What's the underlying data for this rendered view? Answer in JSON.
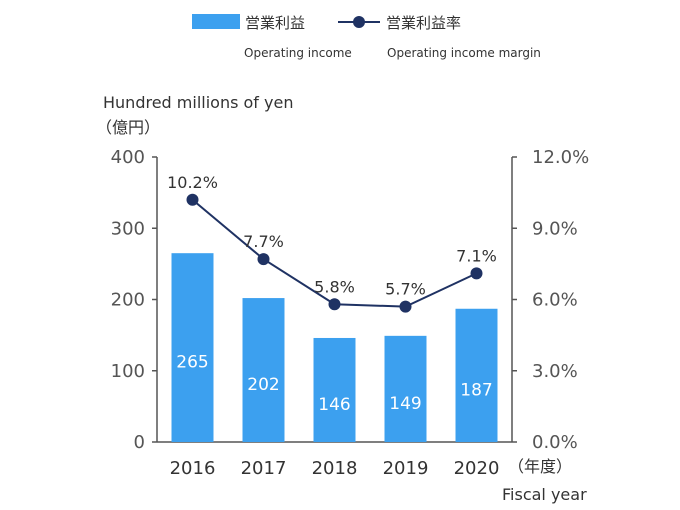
{
  "legend": {
    "bar_jp": "営業利益",
    "bar_en": "Operating income",
    "line_jp": "営業利益率",
    "line_en": "Operating income margin"
  },
  "axis": {
    "left_unit_en": "Hundred millions of yen",
    "left_unit_jp": "（億円）",
    "x_unit_jp": "（年度）",
    "x_unit_en": "Fiscal year"
  },
  "colors": {
    "bar": "#3ca0ef",
    "line": "#1f3263",
    "axis": "#555555"
  },
  "chart_data": {
    "type": "bar",
    "categories": [
      "2016",
      "2017",
      "2018",
      "2019",
      "2020"
    ],
    "series": [
      {
        "name": "営業利益",
        "type": "bar",
        "axis": "left",
        "values": [
          265,
          202,
          146,
          149,
          187
        ],
        "labels": [
          "265",
          "202",
          "146",
          "149",
          "187"
        ]
      },
      {
        "name": "営業利益率",
        "type": "line",
        "axis": "right",
        "values": [
          10.2,
          7.7,
          5.8,
          5.7,
          7.1
        ],
        "labels": [
          "10.2%",
          "7.7%",
          "5.8%",
          "5.7%",
          "7.1%"
        ]
      }
    ],
    "ylim_left": [
      0,
      400
    ],
    "yticks_left": [
      "0",
      "100",
      "200",
      "300",
      "400"
    ],
    "ylim_right": [
      0,
      12
    ],
    "yticks_right": [
      "0.0%",
      "3.0%",
      "6.0%",
      "9.0%",
      "12.0%"
    ],
    "grid": false,
    "legend_position": "top-center"
  }
}
